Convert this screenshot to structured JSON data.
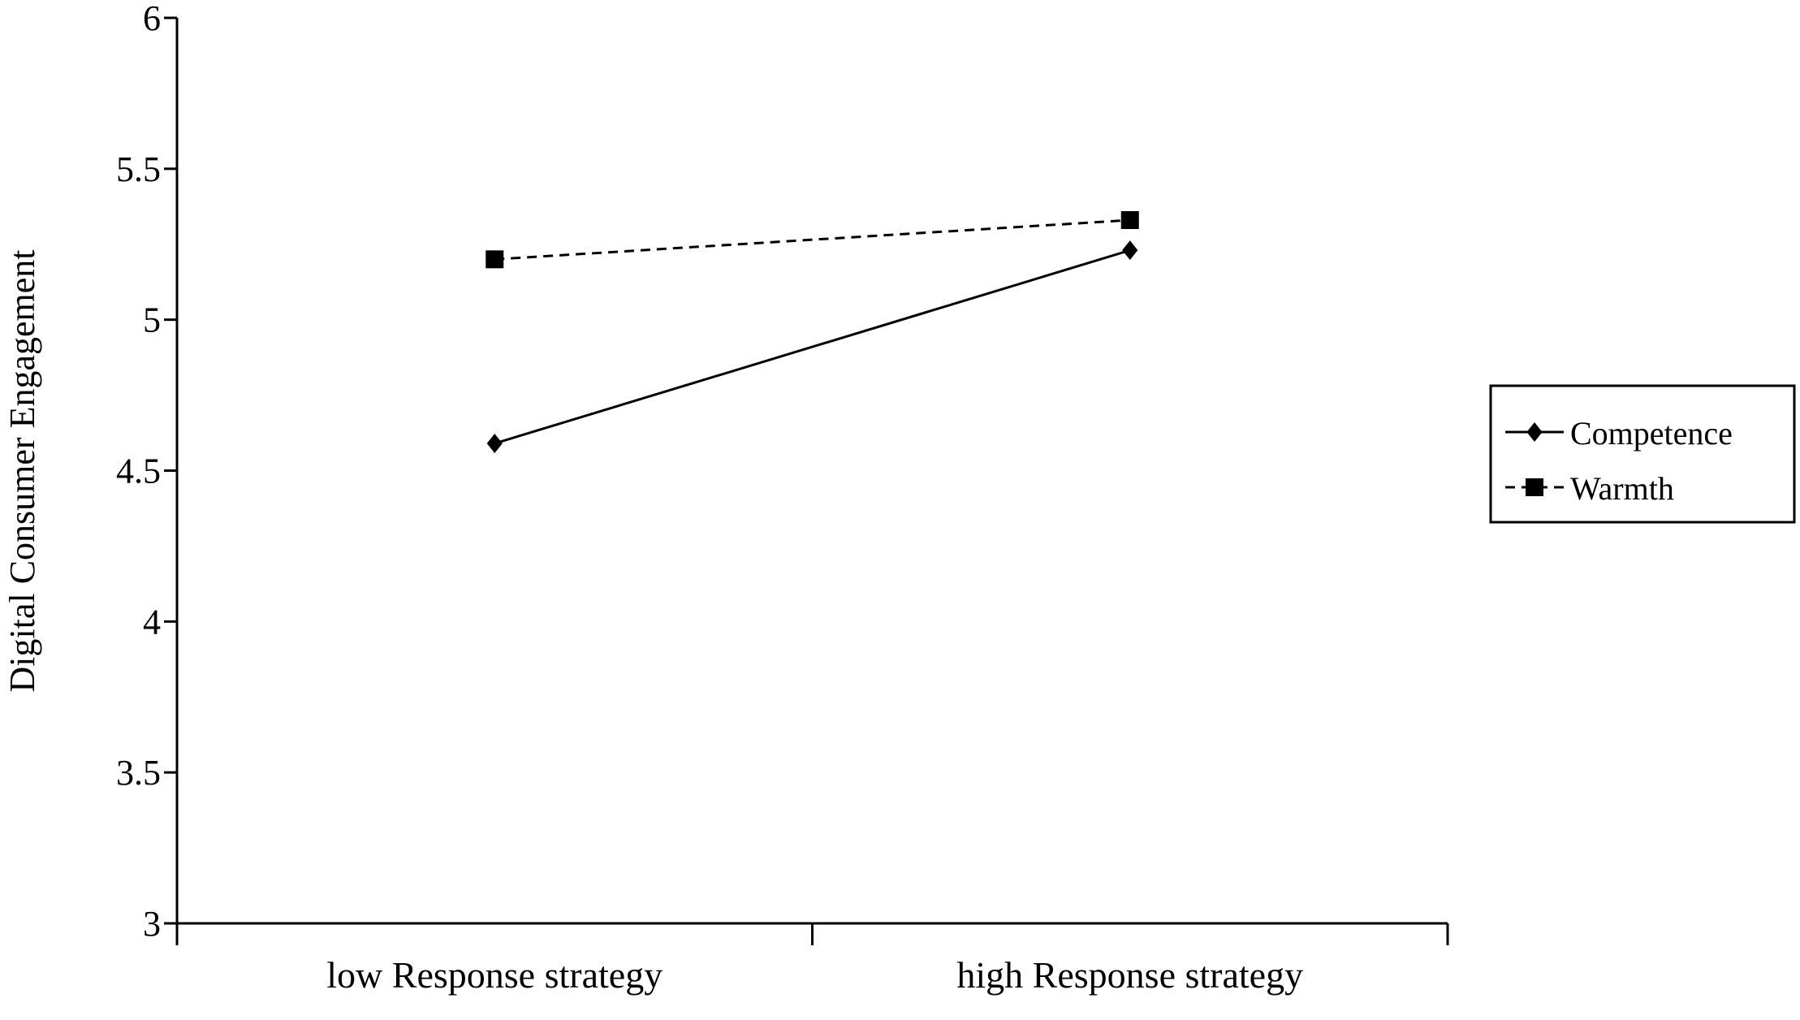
{
  "chart_data": {
    "type": "line",
    "categories": [
      "low Response strategy",
      "high Response strategy"
    ],
    "series": [
      {
        "name": "Competence",
        "values": [
          4.59,
          5.23
        ],
        "marker": "diamond",
        "line_style": "solid",
        "color": "#000000"
      },
      {
        "name": "Warmth",
        "values": [
          5.2,
          5.33
        ],
        "marker": "square",
        "line_style": "dashed",
        "color": "#000000"
      }
    ],
    "ylabel": "Digital Consumer Engagement",
    "xlabel": "",
    "ylim": [
      3,
      6
    ],
    "yticks": [
      3,
      3.5,
      4,
      4.5,
      5,
      5.5,
      6
    ],
    "ytick_labels": [
      "3",
      "3.5",
      "4",
      "4.5",
      "5",
      "5.5",
      "6"
    ],
    "grid": false,
    "legend_position": "right"
  }
}
